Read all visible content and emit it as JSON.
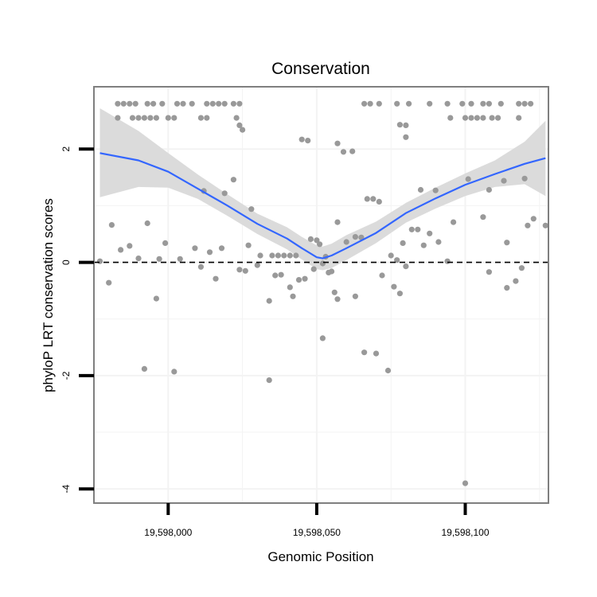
{
  "chart_data": {
    "type": "scatter",
    "title": "Conservation",
    "xlabel": "Genomic Position",
    "ylabel": "phyloP LRT conservation scores",
    "xlim": [
      19597975,
      19598128
    ],
    "ylim": [
      -4.25,
      3.1
    ],
    "x_ticks": [
      {
        "value": 19598000,
        "label": "19,598,000"
      },
      {
        "value": 19598050,
        "label": "19,598,050"
      },
      {
        "value": 19598100,
        "label": "19,598,100"
      }
    ],
    "y_ticks": [
      {
        "value": -4,
        "label": "-4"
      },
      {
        "value": -2,
        "label": "-2"
      },
      {
        "value": 0,
        "label": "0"
      },
      {
        "value": 2,
        "label": "2"
      }
    ],
    "reference_line": {
      "y": 0,
      "style": "dashed"
    },
    "colors": {
      "points": "#999999",
      "smooth_line": "#3366ff",
      "ribbon": "#d9d9d9",
      "panel_border": "#7f7f7f",
      "grid": "#f3f3f3"
    },
    "points": [
      [
        19597983,
        2.8
      ],
      [
        19597985,
        2.8
      ],
      [
        19597987,
        2.8
      ],
      [
        19597989,
        2.8
      ],
      [
        19597993,
        2.8
      ],
      [
        19597995,
        2.8
      ],
      [
        19597998,
        2.8
      ],
      [
        19598003,
        2.8
      ],
      [
        19598005,
        2.8
      ],
      [
        19598008,
        2.8
      ],
      [
        19598013,
        2.8
      ],
      [
        19598015,
        2.8
      ],
      [
        19598017,
        2.8
      ],
      [
        19598019,
        2.8
      ],
      [
        19598022,
        2.8
      ],
      [
        19598024,
        2.8
      ],
      [
        19598066,
        2.8
      ],
      [
        19598068,
        2.8
      ],
      [
        19598071,
        2.8
      ],
      [
        19598077,
        2.8
      ],
      [
        19598081,
        2.8
      ],
      [
        19598088,
        2.8
      ],
      [
        19598094,
        2.8
      ],
      [
        19598099,
        2.8
      ],
      [
        19598102,
        2.8
      ],
      [
        19598106,
        2.8
      ],
      [
        19598108,
        2.8
      ],
      [
        19598112,
        2.8
      ],
      [
        19598118,
        2.8
      ],
      [
        19598120,
        2.8
      ],
      [
        19598122,
        2.8
      ],
      [
        19597983,
        2.55
      ],
      [
        19597988,
        2.55
      ],
      [
        19597990,
        2.55
      ],
      [
        19597992,
        2.55
      ],
      [
        19597994,
        2.55
      ],
      [
        19597996,
        2.55
      ],
      [
        19598000,
        2.55
      ],
      [
        19598002,
        2.55
      ],
      [
        19598011,
        2.55
      ],
      [
        19598013,
        2.55
      ],
      [
        19598023,
        2.55
      ],
      [
        19598095,
        2.55
      ],
      [
        19598100,
        2.55
      ],
      [
        19598102,
        2.55
      ],
      [
        19598104,
        2.55
      ],
      [
        19598106,
        2.55
      ],
      [
        19598109,
        2.55
      ],
      [
        19598111,
        2.55
      ],
      [
        19598118,
        2.55
      ],
      [
        19598024,
        2.42
      ],
      [
        19598025,
        2.34
      ],
      [
        19598078,
        2.43
      ],
      [
        19598080,
        2.42
      ],
      [
        19598080,
        2.21
      ],
      [
        19598045,
        2.17
      ],
      [
        19598047,
        2.15
      ],
      [
        19598057,
        2.1
      ],
      [
        19598059,
        1.95
      ],
      [
        19598062,
        1.96
      ],
      [
        19598022,
        1.46
      ],
      [
        19598012,
        1.26
      ],
      [
        19598019,
        1.22
      ],
      [
        19598085,
        1.28
      ],
      [
        19598090,
        1.27
      ],
      [
        19598067,
        1.12
      ],
      [
        19598069,
        1.12
      ],
      [
        19598071,
        1.07
      ],
      [
        19598101,
        1.47
      ],
      [
        19598108,
        1.28
      ],
      [
        19598113,
        1.44
      ],
      [
        19598120,
        1.48
      ],
      [
        19598028,
        0.94
      ],
      [
        19597981,
        0.66
      ],
      [
        19597993,
        0.69
      ],
      [
        19597984,
        0.22
      ],
      [
        19597987,
        0.29
      ],
      [
        19597990,
        0.07
      ],
      [
        19597997,
        0.06
      ],
      [
        19597999,
        0.34
      ],
      [
        19598004,
        0.06
      ],
      [
        19598009,
        0.25
      ],
      [
        19598014,
        0.18
      ],
      [
        19598018,
        0.25
      ],
      [
        19598027,
        0.3
      ],
      [
        19598031,
        0.12
      ],
      [
        19598035,
        0.12
      ],
      [
        19598037,
        0.12
      ],
      [
        19598039,
        0.12
      ],
      [
        19598041,
        0.12
      ],
      [
        19598043,
        0.12
      ],
      [
        19598048,
        0.41
      ],
      [
        19598050,
        0.39
      ],
      [
        19598051,
        0.32
      ],
      [
        19598053,
        0.1
      ],
      [
        19598057,
        0.71
      ],
      [
        19598060,
        0.36
      ],
      [
        19598063,
        0.45
      ],
      [
        19598065,
        0.44
      ],
      [
        19598075,
        0.12
      ],
      [
        19598077,
        0.04
      ],
      [
        19598079,
        0.34
      ],
      [
        19598082,
        0.58
      ],
      [
        19598084,
        0.58
      ],
      [
        19598086,
        0.3
      ],
      [
        19598088,
        0.51
      ],
      [
        19598091,
        0.36
      ],
      [
        19598094,
        0.02
      ],
      [
        19598096,
        0.71
      ],
      [
        19598106,
        0.8
      ],
      [
        19598114,
        0.35
      ],
      [
        19598121,
        0.65
      ],
      [
        19598123,
        0.77
      ],
      [
        19598127,
        0.65
      ],
      [
        19597977,
        0.02
      ],
      [
        19597980,
        -0.36
      ],
      [
        19598011,
        -0.08
      ],
      [
        19598016,
        -0.29
      ],
      [
        19598024,
        -0.13
      ],
      [
        19598026,
        -0.15
      ],
      [
        19598030,
        -0.05
      ],
      [
        19598034,
        -0.68
      ],
      [
        19598036,
        -0.23
      ],
      [
        19598038,
        -0.22
      ],
      [
        19598041,
        -0.44
      ],
      [
        19598042,
        -0.6
      ],
      [
        19598044,
        -0.31
      ],
      [
        19598046,
        -0.29
      ],
      [
        19598049,
        -0.12
      ],
      [
        19598052,
        -0.02
      ],
      [
        19598054,
        -0.18
      ],
      [
        19598055,
        -0.16
      ],
      [
        19598056,
        -0.53
      ],
      [
        19598057,
        -0.65
      ],
      [
        19598063,
        -0.6
      ],
      [
        19598072,
        -0.23
      ],
      [
        19598076,
        -0.43
      ],
      [
        19598078,
        -0.55
      ],
      [
        19598080,
        -0.07
      ],
      [
        19598108,
        -0.17
      ],
      [
        19598114,
        -0.45
      ],
      [
        19598117,
        -0.33
      ],
      [
        19598119,
        -0.1
      ],
      [
        19597996,
        -0.64
      ],
      [
        19598052,
        -1.34
      ],
      [
        19598066,
        -1.59
      ],
      [
        19598070,
        -1.61
      ],
      [
        19598074,
        -1.91
      ],
      [
        19597992,
        -1.88
      ],
      [
        19598002,
        -1.93
      ],
      [
        19598034,
        -2.08
      ],
      [
        19598100,
        -3.9
      ]
    ],
    "smooth_fit": {
      "method": "loess",
      "x": [
        19597977,
        19597990,
        19598000,
        19598010,
        19598020,
        19598030,
        19598040,
        19598045,
        19598050,
        19598052,
        19598055,
        19598060,
        19598070,
        19598080,
        19598090,
        19598100,
        19598110,
        19598120,
        19598127
      ],
      "y": [
        1.93,
        1.8,
        1.6,
        1.3,
        1.0,
        0.68,
        0.42,
        0.25,
        0.09,
        0.07,
        0.12,
        0.25,
        0.52,
        0.87,
        1.13,
        1.37,
        1.56,
        1.74,
        1.84
      ],
      "ymin": [
        1.15,
        1.33,
        1.32,
        1.12,
        0.82,
        0.5,
        0.23,
        0.05,
        -0.12,
        -0.14,
        -0.1,
        0.04,
        0.34,
        0.7,
        0.95,
        1.17,
        1.33,
        1.38,
        1.17
      ],
      "ymax": [
        2.72,
        2.32,
        1.93,
        1.55,
        1.2,
        0.86,
        0.62,
        0.45,
        0.3,
        0.28,
        0.33,
        0.48,
        0.72,
        1.05,
        1.32,
        1.57,
        1.8,
        2.13,
        2.5
      ]
    }
  }
}
